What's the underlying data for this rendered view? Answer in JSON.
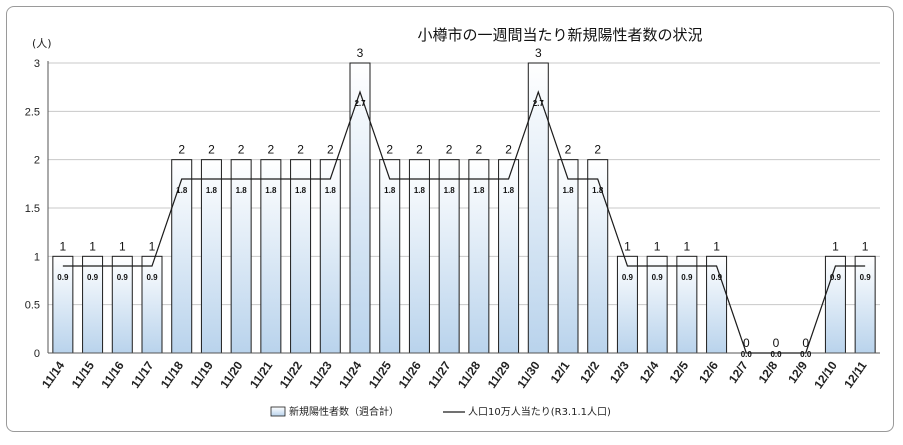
{
  "chart_data": {
    "type": "bar",
    "title": "小樽市の一週間当たり新規陽性者数の状況",
    "ylabel": "(人)",
    "ylim": [
      0,
      3
    ],
    "yticks": [
      "0",
      "0.5",
      "1",
      "1.5",
      "2",
      "2.5",
      "3"
    ],
    "grid": true,
    "legend_position": "bottom",
    "categories": [
      "11/14",
      "11/15",
      "11/16",
      "11/17",
      "11/18",
      "11/19",
      "11/20",
      "11/21",
      "11/22",
      "11/23",
      "11/24",
      "11/25",
      "11/26",
      "11/27",
      "11/28",
      "11/29",
      "11/30",
      "12/1",
      "12/2",
      "12/3",
      "12/4",
      "12/5",
      "12/6",
      "12/7",
      "12/8",
      "12/9",
      "12/10",
      "12/11"
    ],
    "series": [
      {
        "name": "新規陽性者数（週合計）",
        "kind": "bar",
        "values": [
          1,
          1,
          1,
          1,
          2,
          2,
          2,
          2,
          2,
          2,
          3,
          2,
          2,
          2,
          2,
          2,
          3,
          2,
          2,
          1,
          1,
          1,
          1,
          0,
          0,
          0,
          1,
          1
        ],
        "labels": [
          "1",
          "1",
          "1",
          "1",
          "2",
          "2",
          "2",
          "2",
          "2",
          "2",
          "3",
          "2",
          "2",
          "2",
          "2",
          "2",
          "3",
          "2",
          "2",
          "1",
          "1",
          "1",
          "1",
          "0",
          "0",
          "0",
          "1",
          "1"
        ]
      },
      {
        "name": "人口10万人当たり(R3.1.1人口)",
        "kind": "line",
        "values": [
          0.9,
          0.9,
          0.9,
          0.9,
          1.8,
          1.8,
          1.8,
          1.8,
          1.8,
          1.8,
          2.7,
          1.8,
          1.8,
          1.8,
          1.8,
          1.8,
          2.7,
          1.8,
          1.8,
          0.9,
          0.9,
          0.9,
          0.9,
          0.0,
          0.0,
          0.0,
          0.9,
          0.9
        ],
        "labels": [
          "0.9",
          "0.9",
          "0.9",
          "0.9",
          "1.8",
          "1.8",
          "1.8",
          "1.8",
          "1.8",
          "1.8",
          "2.7",
          "1.8",
          "1.8",
          "1.8",
          "1.8",
          "1.8",
          "2.7",
          "1.8",
          "1.8",
          "0.9",
          "0.9",
          "0.9",
          "0.9",
          "0.0",
          "0.0",
          "0.0",
          "0.9",
          "0.9"
        ]
      }
    ],
    "colors": {
      "bar_top": "#ffffff",
      "bar_bottom": "#b9d3ec",
      "bar_stroke": "#1c1c1c",
      "line": "#1c1c1c",
      "grid": "#c8c8c8"
    }
  }
}
